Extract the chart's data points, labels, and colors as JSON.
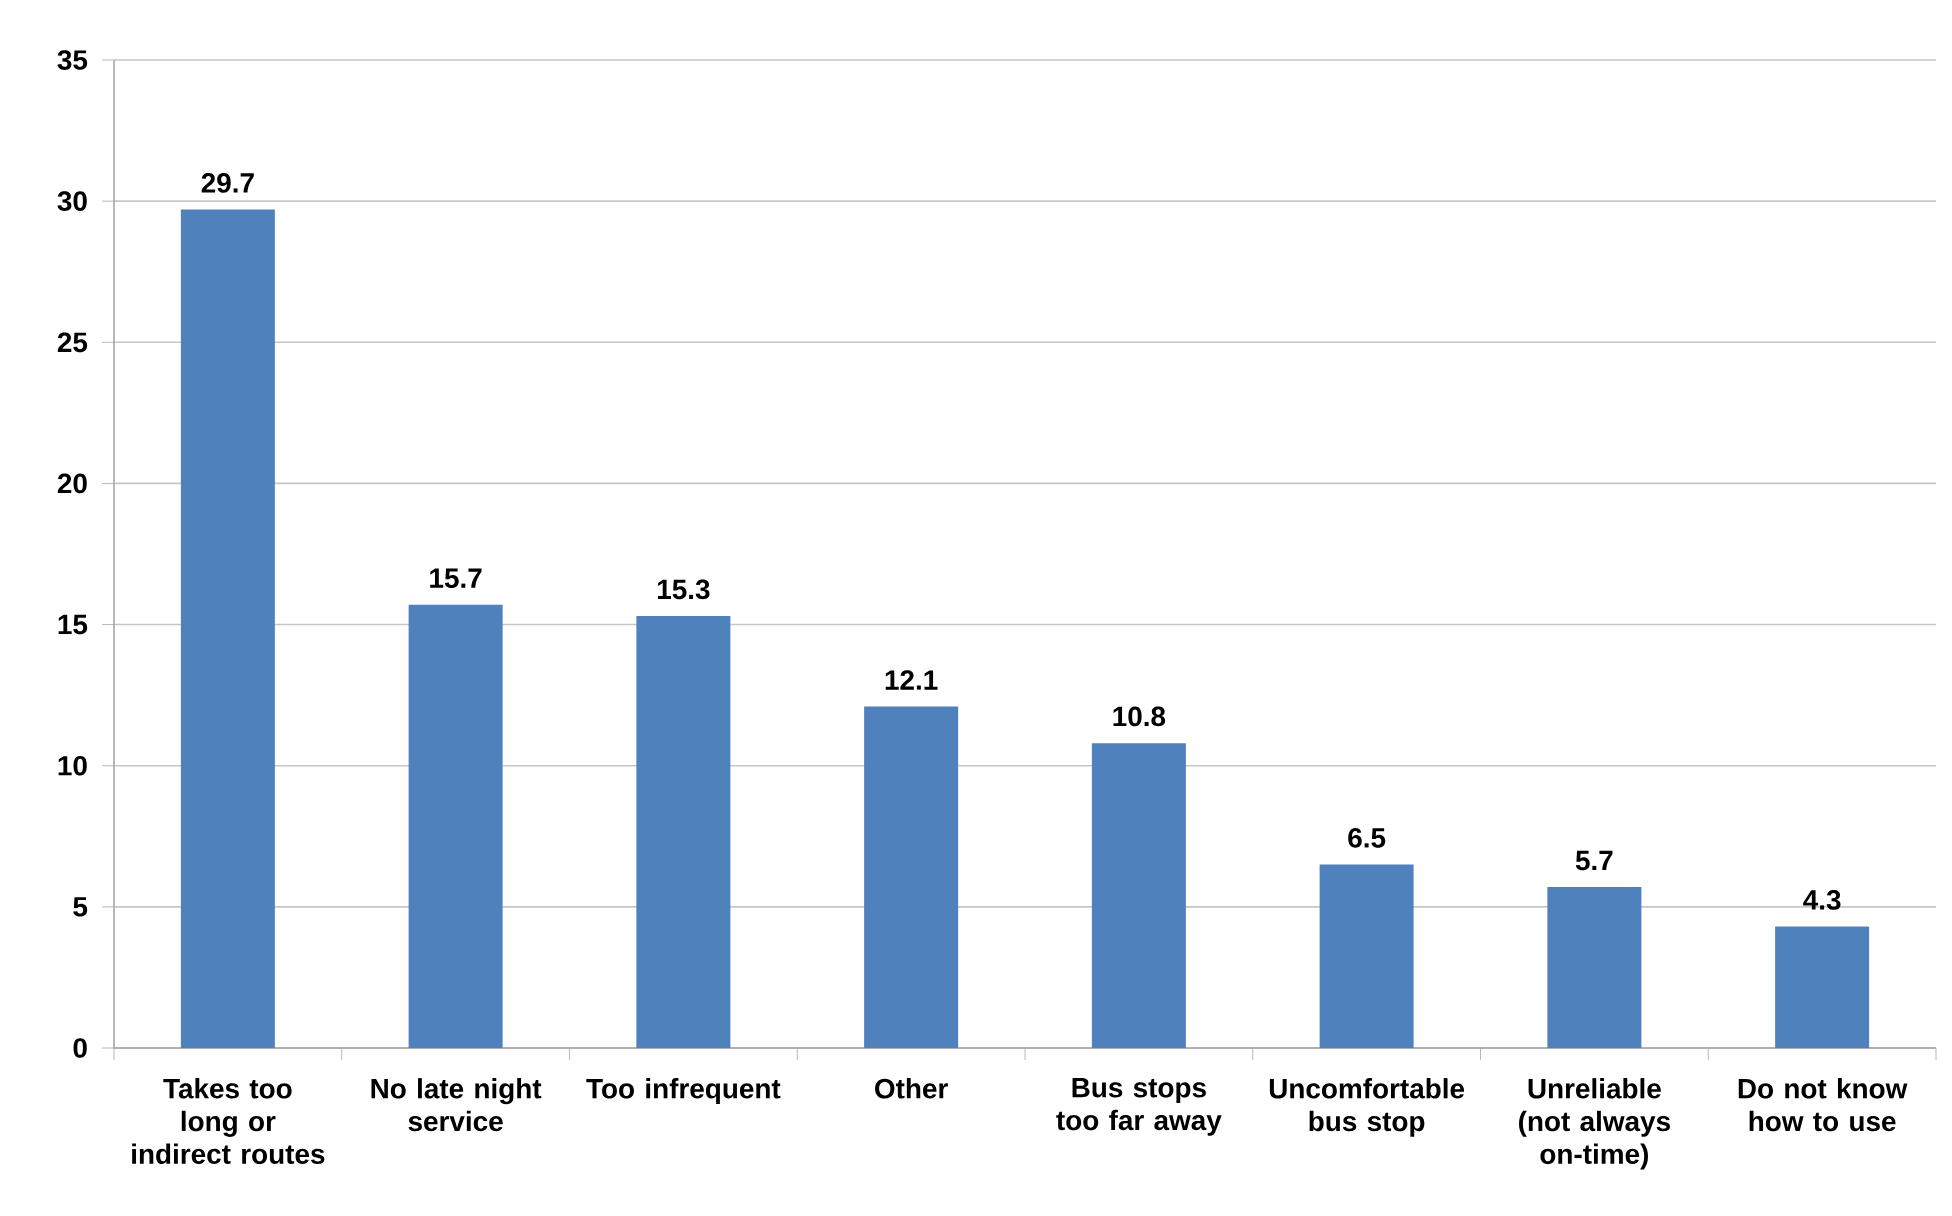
{
  "chart_data": {
    "type": "bar",
    "categories": [
      "Takes too long or indirect routes",
      "No late night service",
      "Too infrequent",
      "Other",
      "Bus stops too far away",
      "Uncomfortable bus stop",
      "Unreliable (not always on-time)",
      "Do not know how to use"
    ],
    "values": [
      29.7,
      15.7,
      15.3,
      12.1,
      10.8,
      6.5,
      5.7,
      4.3
    ],
    "color": "#4f81bd",
    "ylim": [
      0,
      35
    ],
    "yticks": [
      0,
      5,
      10,
      15,
      20,
      25,
      30,
      35
    ],
    "grid": "y",
    "data_labels": true
  }
}
